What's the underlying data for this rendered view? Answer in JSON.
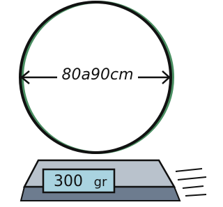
{
  "dimension": {
    "label": "80a90cm"
  },
  "scale": {
    "reading": "300",
    "unit": "gr"
  }
}
